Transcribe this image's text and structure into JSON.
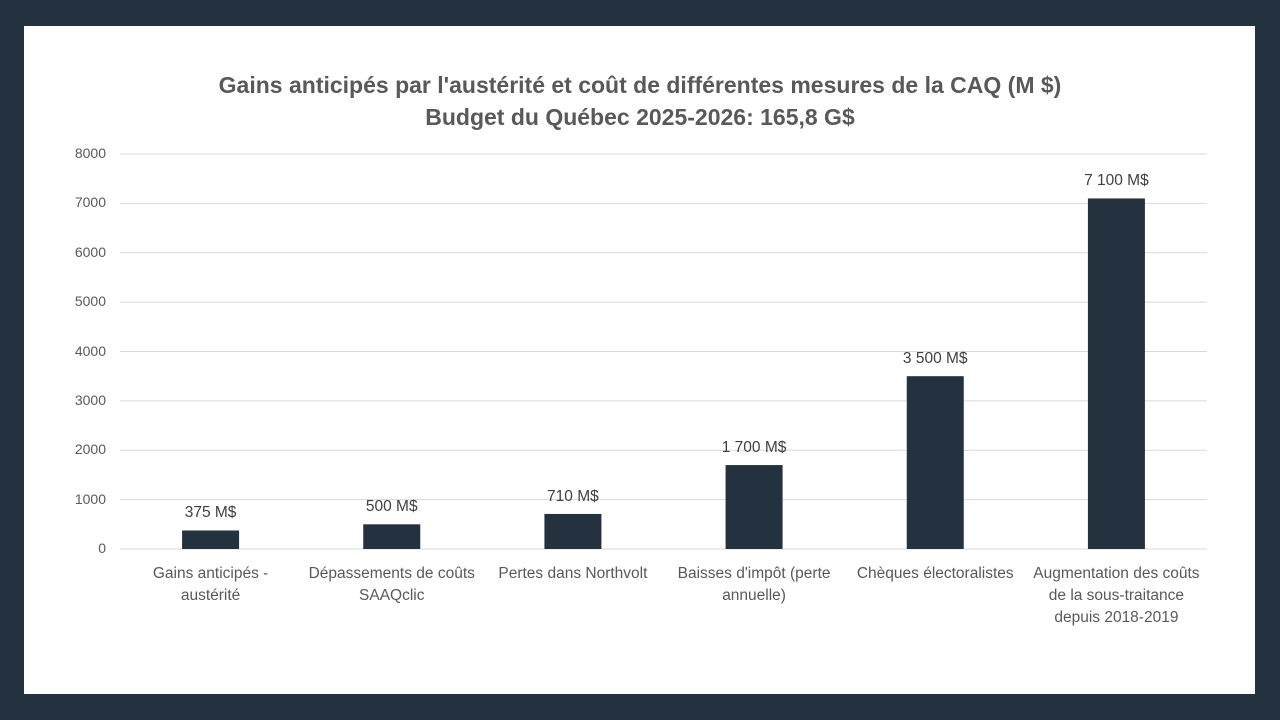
{
  "chart_data": {
    "type": "bar",
    "title": "Gains anticipés par l'austérité et coût de différentes mesures de la CAQ (M $)",
    "subtitle": "Budget du Québec 2025-2026: 165,8 G$",
    "categories": [
      "Gains anticipés - austérité",
      "Dépassements de coûts SAAQclic",
      "Pertes dans Northvolt",
      "Baisses d'impôt (perte annuelle)",
      "Chèques électoralistes",
      "Augmentation des coûts de la sous-traitance depuis 2018-2019"
    ],
    "values": [
      375,
      500,
      710,
      1700,
      3500,
      7100
    ],
    "data_labels": [
      "375 M$",
      "500 M$",
      "710 M$",
      "1 700 M$",
      "3 500 M$",
      "7 100 M$"
    ],
    "yticks": [
      "0",
      "1000",
      "2000",
      "3000",
      "4000",
      "5000",
      "6000",
      "7000",
      "8000"
    ],
    "ylim": [
      0,
      8000
    ],
    "xlabel": "",
    "ylabel": "",
    "grid": true,
    "legend": "none",
    "colors": {
      "bar": "#24313f",
      "frame": "#24313f",
      "grid": "#d9d9d9"
    }
  }
}
